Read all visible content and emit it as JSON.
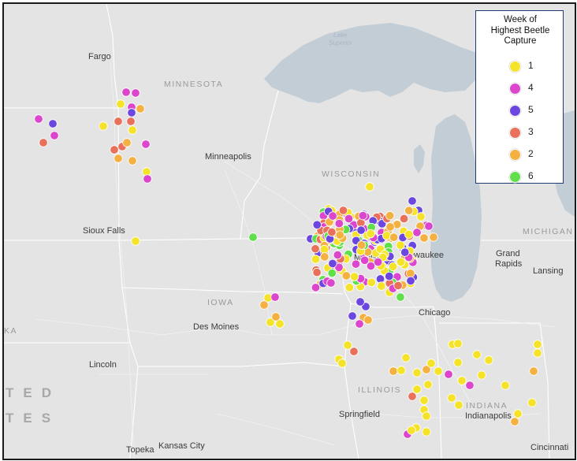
{
  "map": {
    "city_labels": {
      "fargo": "Fargo",
      "minneapolis": "Minneapolis",
      "sioux_falls": "Sioux Falls",
      "des_moines": "Des Moines",
      "lincoln": "Lincoln",
      "topeka": "Topeka",
      "kansas_city": "Kansas City",
      "madison": "Madison",
      "milwaukee": "Milwaukee",
      "chicago": "Chicago",
      "springfield": "Springfield",
      "indianapolis": "Indianapolis",
      "cincinnati": "Cincinnati",
      "lansing": "Lansing",
      "grand": "Grand",
      "rapids": "Rapids"
    },
    "state_labels": {
      "minnesota": "MINNESOTA",
      "wisconsin": "WISCONSIN",
      "iowa": "IOWA",
      "illinois": "ILLINOIS",
      "indiana": "INDIANA",
      "michigan": "MICHIGAN",
      "ka_fragment": "KA"
    },
    "lake_labels": {
      "lake": "Lake",
      "superior": "Superior"
    },
    "country_label": {
      "line1": "TED",
      "line2": "TES"
    }
  },
  "legend": {
    "title_line1": "Week of",
    "title_line2": "Highest Beetle",
    "title_line3": "Capture",
    "items": [
      {
        "label": "1",
        "color": "#f5e32a"
      },
      {
        "label": "4",
        "color": "#db46cc"
      },
      {
        "label": "5",
        "color": "#6b47e0"
      },
      {
        "label": "3",
        "color": "#e9705a"
      },
      {
        "label": "2",
        "color": "#f4b040"
      },
      {
        "label": "6",
        "color": "#5fe04a"
      }
    ]
  }
}
